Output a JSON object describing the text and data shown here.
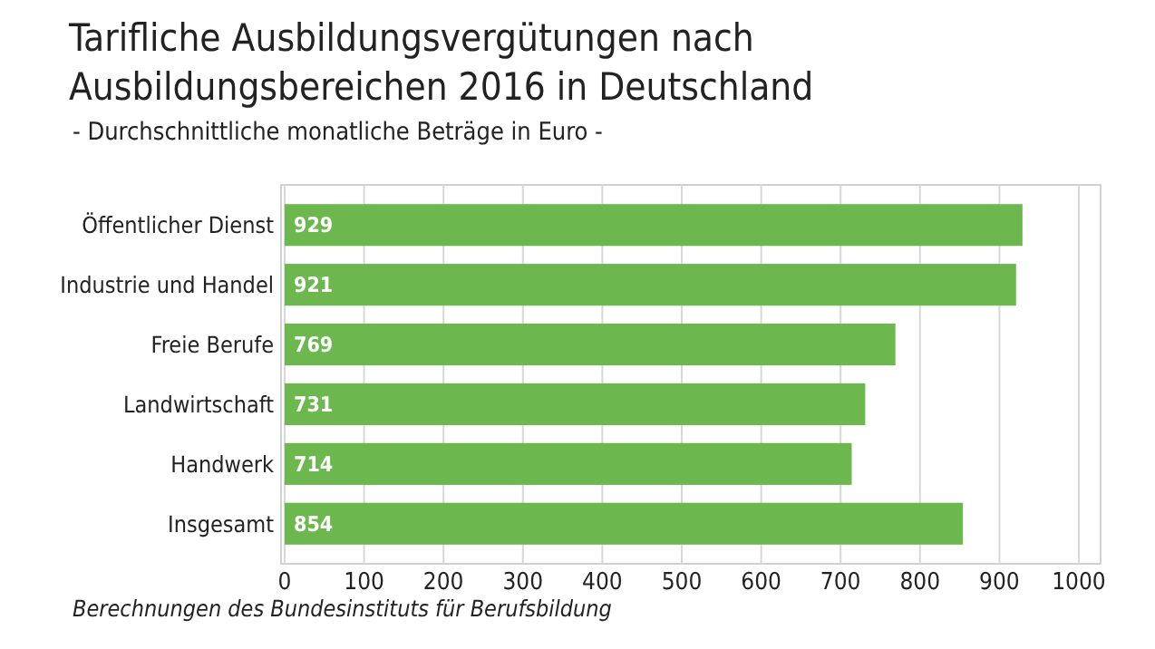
{
  "chart_data": {
    "type": "bar",
    "orientation": "horizontal",
    "title": "Tarifliche Ausbildungsvergütungen nach Ausbildungsbereichen 2016 in Deutschland",
    "subtitle": "- Durchschnittliche monatliche Beträge in Euro -",
    "categories": [
      "Öffentlicher Dienst",
      "Industrie und Handel",
      "Freie Berufe",
      "Landwirtschaft",
      "Handwerk",
      "Insgesamt"
    ],
    "values": [
      929,
      921,
      769,
      731,
      714,
      854
    ],
    "color": "#6cb84e",
    "data_labels": true,
    "xlim": [
      0,
      1000
    ],
    "xticks": [
      0,
      100,
      200,
      300,
      400,
      500,
      600,
      700,
      800,
      900,
      1000
    ],
    "grid": "x",
    "annotations": [
      "Berechnungen des Bundesinstituts für Berufsbildung"
    ]
  }
}
